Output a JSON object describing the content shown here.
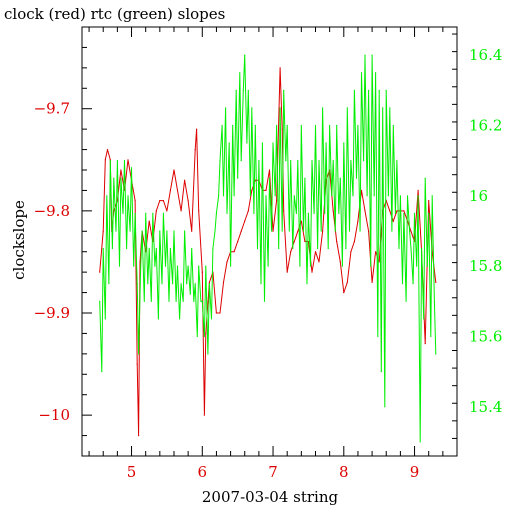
{
  "chart_data": {
    "type": "line",
    "title": "clock (red) rtc (green) slopes",
    "xlabel": "2007-03-04 string",
    "ylabel_left": "clockslope",
    "x_ticks": [
      "5",
      "6",
      "7",
      "8",
      "9"
    ],
    "y_left_ticks": [
      "-9.7",
      "-9.8",
      "-9.9",
      "-10"
    ],
    "y_right_ticks": [
      "16.4",
      "16.2",
      "16",
      "15.8",
      "15.6",
      "15.4"
    ],
    "xlim": [
      4.3,
      9.6
    ],
    "ylim_left": [
      -10.04,
      -9.62
    ],
    "ylim_right": [
      15.26,
      16.48
    ],
    "grid": false,
    "colors": {
      "red": "#dd0000",
      "green": "#00ee00",
      "axis": "#000000"
    },
    "series": [
      {
        "name": "clock",
        "axis": "left",
        "color": "#dd0000",
        "x": [
          4.55,
          4.6,
          4.63,
          4.66,
          4.7,
          4.72,
          4.75,
          4.8,
          4.85,
          4.9,
          4.95,
          5.0,
          5.05,
          5.08,
          5.1,
          5.12,
          5.15,
          5.2,
          5.25,
          5.3,
          5.35,
          5.4,
          5.45,
          5.5,
          5.55,
          5.6,
          5.65,
          5.7,
          5.75,
          5.8,
          5.85,
          5.9,
          5.92,
          5.95,
          6.0,
          6.03,
          6.05,
          6.08,
          6.1,
          6.15,
          6.2,
          6.25,
          6.3,
          6.35,
          6.4,
          6.45,
          6.5,
          6.55,
          6.6,
          6.65,
          6.7,
          6.75,
          6.8,
          6.85,
          6.9,
          6.95,
          7.0,
          7.05,
          7.1,
          7.13,
          7.15,
          7.2,
          7.25,
          7.3,
          7.35,
          7.4,
          7.45,
          7.5,
          7.55,
          7.6,
          7.65,
          7.7,
          7.75,
          7.8,
          7.85,
          7.9,
          7.95,
          8.0,
          8.05,
          8.1,
          8.15,
          8.2,
          8.25,
          8.3,
          8.35,
          8.4,
          8.45,
          8.5,
          8.55,
          8.6,
          8.65,
          8.7,
          8.75,
          8.8,
          8.85,
          8.9,
          8.95,
          9.0,
          9.05,
          9.1,
          9.15,
          9.2,
          9.25,
          9.3
        ],
        "values": [
          -9.86,
          -9.82,
          -9.75,
          -9.74,
          -9.75,
          -9.82,
          -9.8,
          -9.79,
          -9.76,
          -9.78,
          -9.75,
          -9.77,
          -9.79,
          -9.95,
          -10.02,
          -9.85,
          -9.82,
          -9.84,
          -9.81,
          -9.83,
          -9.8,
          -9.79,
          -9.79,
          -9.8,
          -9.78,
          -9.76,
          -9.78,
          -9.8,
          -9.77,
          -9.79,
          -9.82,
          -9.74,
          -9.72,
          -9.8,
          -9.86,
          -10.0,
          -9.92,
          -9.89,
          -9.87,
          -9.86,
          -9.9,
          -9.9,
          -9.87,
          -9.85,
          -9.84,
          -9.84,
          -9.83,
          -9.82,
          -9.81,
          -9.8,
          -9.78,
          -9.77,
          -9.77,
          -9.78,
          -9.78,
          -9.76,
          -9.82,
          -9.79,
          -9.66,
          -9.72,
          -9.8,
          -9.86,
          -9.84,
          -9.83,
          -9.82,
          -9.81,
          -9.83,
          -9.83,
          -9.86,
          -9.84,
          -9.85,
          -9.82,
          -9.77,
          -9.76,
          -9.8,
          -9.83,
          -9.85,
          -9.88,
          -9.87,
          -9.84,
          -9.83,
          -9.81,
          -9.78,
          -9.8,
          -9.82,
          -9.87,
          -9.84,
          -9.85,
          -9.8,
          -9.79,
          -9.8,
          -9.81,
          -9.8,
          -9.8,
          -9.8,
          -9.81,
          -9.82,
          -9.83,
          -9.78,
          -9.84,
          -9.93,
          -9.79,
          -9.84,
          -9.87
        ]
      },
      {
        "name": "rtc",
        "axis": "right",
        "color": "#00ee00",
        "x": [
          4.55,
          4.58,
          4.6,
          4.63,
          4.65,
          4.68,
          4.7,
          4.73,
          4.75,
          4.78,
          4.8,
          4.83,
          4.85,
          4.88,
          4.9,
          4.93,
          4.95,
          4.98,
          5.0,
          5.03,
          5.05,
          5.08,
          5.1,
          5.13,
          5.15,
          5.18,
          5.2,
          5.23,
          5.25,
          5.28,
          5.3,
          5.33,
          5.35,
          5.38,
          5.4,
          5.43,
          5.45,
          5.48,
          5.5,
          5.53,
          5.55,
          5.58,
          5.6,
          5.63,
          5.65,
          5.68,
          5.7,
          5.73,
          5.75,
          5.78,
          5.8,
          5.83,
          5.85,
          5.88,
          5.9,
          5.93,
          5.95,
          5.98,
          6.0,
          6.03,
          6.05,
          6.08,
          6.1,
          6.13,
          6.15,
          6.18,
          6.2,
          6.23,
          6.25,
          6.28,
          6.3,
          6.33,
          6.35,
          6.38,
          6.4,
          6.43,
          6.45,
          6.48,
          6.5,
          6.53,
          6.55,
          6.58,
          6.6,
          6.63,
          6.65,
          6.68,
          6.7,
          6.73,
          6.75,
          6.78,
          6.8,
          6.83,
          6.85,
          6.88,
          6.9,
          6.93,
          6.95,
          6.98,
          7.0,
          7.03,
          7.05,
          7.08,
          7.1,
          7.13,
          7.15,
          7.18,
          7.2,
          7.23,
          7.25,
          7.28,
          7.3,
          7.33,
          7.35,
          7.38,
          7.4,
          7.43,
          7.45,
          7.48,
          7.5,
          7.53,
          7.55,
          7.58,
          7.6,
          7.63,
          7.65,
          7.68,
          7.7,
          7.73,
          7.75,
          7.78,
          7.8,
          7.83,
          7.85,
          7.88,
          7.9,
          7.93,
          7.95,
          7.98,
          8.0,
          8.03,
          8.05,
          8.08,
          8.1,
          8.13,
          8.15,
          8.18,
          8.2,
          8.23,
          8.25,
          8.28,
          8.3,
          8.33,
          8.35,
          8.38,
          8.4,
          8.43,
          8.45,
          8.48,
          8.5,
          8.53,
          8.55,
          8.58,
          8.6,
          8.63,
          8.65,
          8.68,
          8.7,
          8.73,
          8.75,
          8.78,
          8.8,
          8.83,
          8.85,
          8.88,
          8.9,
          8.93,
          8.95,
          8.98,
          9.0,
          9.03,
          9.05,
          9.08,
          9.1,
          9.13,
          9.15,
          9.18,
          9.2,
          9.23,
          9.25,
          9.28,
          9.3
        ],
        "values": [
          15.7,
          15.5,
          15.85,
          15.65,
          16.0,
          15.75,
          16.1,
          15.85,
          16.05,
          15.9,
          16.1,
          15.8,
          16.05,
          15.95,
          16.1,
          15.85,
          16.0,
          15.9,
          16.08,
          15.8,
          15.95,
          15.75,
          15.55,
          15.8,
          15.9,
          15.7,
          15.95,
          15.75,
          15.85,
          15.7,
          15.95,
          15.8,
          15.85,
          15.65,
          15.9,
          15.75,
          15.95,
          15.8,
          15.9,
          15.7,
          15.85,
          15.75,
          15.9,
          15.7,
          15.8,
          15.65,
          15.75,
          15.7,
          15.9,
          15.75,
          15.8,
          15.72,
          15.85,
          15.7,
          15.75,
          15.6,
          15.8,
          15.7,
          15.7,
          15.6,
          15.8,
          15.55,
          15.75,
          15.65,
          15.85,
          15.9,
          15.95,
          16.0,
          16.1,
          16.2,
          16.0,
          16.25,
          15.95,
          16.15,
          15.8,
          16.2,
          16.0,
          16.3,
          16.05,
          16.35,
          16.1,
          16.3,
          16.4,
          16.15,
          16.3,
          16.0,
          16.25,
          15.95,
          16.2,
          15.85,
          16.1,
          15.75,
          16.15,
          15.7,
          16.0,
          15.8,
          16.05,
          15.9,
          16.15,
          16.0,
          16.2,
          15.85,
          16.25,
          15.9,
          16.3,
          16.1,
          16.2,
          15.9,
          16.1,
          15.85,
          16.0,
          15.95,
          16.1,
          15.8,
          16.2,
          15.9,
          16.05,
          15.75,
          15.95,
          15.8,
          16.1,
          15.95,
          16.2,
          15.85,
          16.1,
          15.9,
          16.25,
          15.95,
          16.15,
          15.85,
          16.2,
          16.0,
          16.1,
          15.9,
          16.2,
          15.95,
          16.05,
          15.8,
          16.15,
          15.85,
          16.25,
          15.9,
          16.1,
          16.0,
          16.3,
          16.05,
          16.2,
          15.9,
          16.35,
          16.1,
          16.4,
          16.0,
          16.3,
          15.8,
          16.4,
          16.0,
          16.35,
          15.6,
          16.3,
          15.5,
          16.25,
          15.4,
          16.3,
          16.0,
          16.25,
          15.9,
          16.2,
          15.95,
          16.1,
          15.85,
          16.0,
          15.75,
          15.95,
          15.7,
          16.0,
          15.9,
          15.85,
          15.75,
          15.95,
          15.8,
          16.0,
          15.3,
          15.85,
          15.65,
          16.05,
          15.8,
          15.95,
          15.6,
          16.0,
          15.7,
          15.55
        ]
      }
    ]
  }
}
